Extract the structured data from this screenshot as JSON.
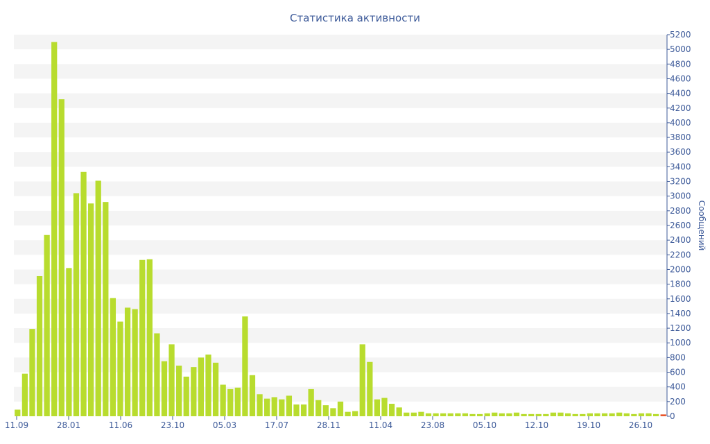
{
  "chart_data": {
    "type": "bar",
    "title": "Статистика активности",
    "ylabel": "Сообщений",
    "y_axis_side": "right",
    "ylim": [
      0,
      5200
    ],
    "y_ticks": [
      0,
      200,
      400,
      600,
      800,
      1000,
      1200,
      1400,
      1600,
      1800,
      2000,
      2200,
      2400,
      2600,
      2800,
      3000,
      3200,
      3400,
      3600,
      3800,
      4000,
      4200,
      4400,
      4600,
      4800,
      5000,
      5200
    ],
    "x_ticks": [
      "11.09",
      "28.01",
      "11.06",
      "23.10",
      "05.03",
      "17.07",
      "28.11",
      "11.04",
      "23.08",
      "05.10",
      "12.10",
      "19.10",
      "26.10"
    ],
    "grid": "alternating horizontal bands",
    "colors": {
      "bar": "#b8dc2e",
      "last_bar": "#e8552a",
      "text": "#3d5a99",
      "band": "#f4f4f4"
    },
    "values": [
      90,
      580,
      1190,
      1910,
      2470,
      5100,
      4320,
      2020,
      3040,
      3330,
      2900,
      3210,
      2920,
      1610,
      1290,
      1480,
      1460,
      2130,
      2140,
      1130,
      750,
      980,
      690,
      540,
      670,
      800,
      840,
      730,
      430,
      370,
      390,
      1360,
      560,
      300,
      240,
      260,
      230,
      280,
      160,
      160,
      370,
      220,
      150,
      110,
      200,
      60,
      70,
      980,
      740,
      230,
      250,
      170,
      120,
      50,
      50,
      60,
      40,
      40,
      40,
      40,
      40,
      40,
      30,
      30,
      40,
      50,
      40,
      40,
      50,
      30,
      30,
      30,
      30,
      50,
      50,
      40,
      30,
      30,
      40,
      40,
      40,
      40,
      50,
      40,
      30,
      40,
      40,
      30,
      25
    ]
  }
}
